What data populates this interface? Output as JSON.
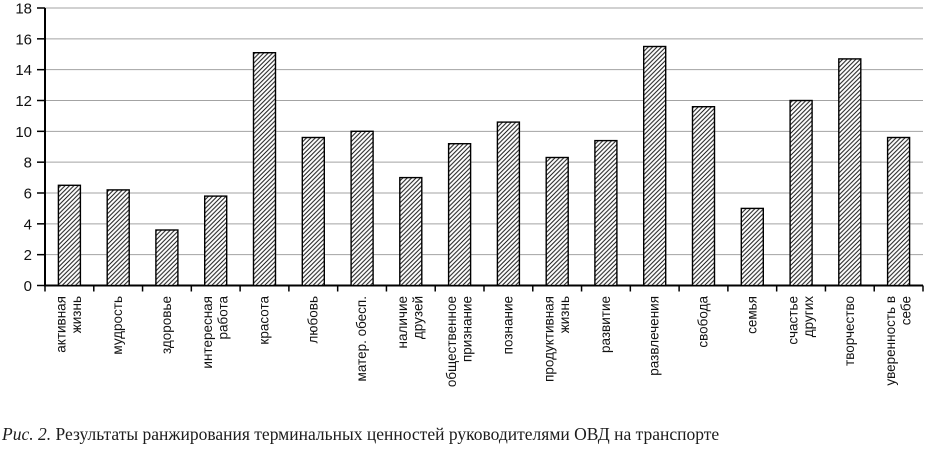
{
  "figure": {
    "caption_label": "Рис. 2.",
    "caption_text": " Результаты ранжирования терминальных ценностей руководителями ОВД на транспорте"
  },
  "chart_data": {
    "type": "bar",
    "title": "",
    "xlabel": "",
    "ylabel": "",
    "categories": [
      "активная\nжизнь",
      "мудрость",
      "здоровье",
      "интересная\nработа",
      "красота",
      "любовь",
      "матер. обесп.",
      "наличие\nдрузей",
      "общественное\nпризнание",
      "познание",
      "продуктивная\nжизнь",
      "развитие",
      "развлечения",
      "свобода",
      "семья",
      "счастье\nдругих",
      "творчество",
      "уверенность в\nсебе"
    ],
    "values": [
      6.5,
      6.2,
      3.6,
      5.8,
      15.1,
      9.6,
      10,
      7,
      9.2,
      10.6,
      8.3,
      9.4,
      15.5,
      11.6,
      5,
      12,
      14.7,
      9.6
    ],
    "ylim": [
      0,
      18
    ],
    "yticks": [
      0,
      2,
      4,
      6,
      8,
      10,
      12,
      14,
      16,
      18
    ],
    "grid": true,
    "legend": "none",
    "bar_style": "diagonal-hatch",
    "colors": {
      "bar_fill_bg": "#ffffff",
      "bar_outline": "#000000",
      "hatch_line": "#1a1a1a",
      "gridline": "#a3a3a3",
      "axis": "#000000",
      "text": "#111111"
    }
  }
}
